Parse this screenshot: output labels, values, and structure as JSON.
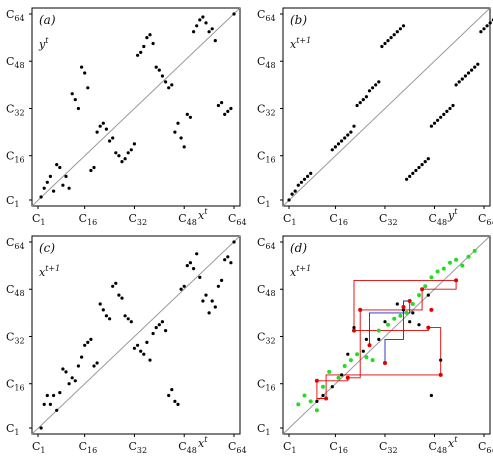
{
  "panels": [
    {
      "label": "(a)",
      "y_axis_label": "y^t",
      "x_axis_label": "x^t",
      "x_ticks": [
        "C_1",
        "C_16",
        "C_32",
        "C_48",
        "C_64"
      ],
      "y_ticks": [
        "C_1",
        "C_16",
        "C_32",
        "C_48",
        "C_64"
      ],
      "points_black": [
        [
          2,
          2
        ],
        [
          3,
          5
        ],
        [
          4,
          7
        ],
        [
          5,
          9
        ],
        [
          6,
          4
        ],
        [
          7,
          13
        ],
        [
          8,
          12
        ],
        [
          9,
          6
        ],
        [
          10,
          9
        ],
        [
          11,
          5
        ],
        [
          12,
          37
        ],
        [
          13,
          35
        ],
        [
          14,
          32
        ],
        [
          15,
          46
        ],
        [
          16,
          44
        ],
        [
          17,
          39
        ],
        [
          18,
          11
        ],
        [
          19,
          12
        ],
        [
          20,
          24
        ],
        [
          21,
          26
        ],
        [
          22,
          27
        ],
        [
          23,
          25
        ],
        [
          24,
          21
        ],
        [
          25,
          22
        ],
        [
          26,
          17
        ],
        [
          27,
          16
        ],
        [
          28,
          14
        ],
        [
          29,
          15
        ],
        [
          30,
          17
        ],
        [
          31,
          18
        ],
        [
          32,
          20
        ],
        [
          33,
          50
        ],
        [
          34,
          51
        ],
        [
          35,
          53
        ],
        [
          36,
          56
        ],
        [
          37,
          57
        ],
        [
          38,
          54
        ],
        [
          39,
          46
        ],
        [
          40,
          45
        ],
        [
          41,
          43
        ],
        [
          42,
          41
        ],
        [
          43,
          39
        ],
        [
          44,
          40
        ],
        [
          45,
          24
        ],
        [
          46,
          27
        ],
        [
          47,
          22
        ],
        [
          48,
          19
        ],
        [
          49,
          30
        ],
        [
          50,
          29
        ],
        [
          51,
          58
        ],
        [
          52,
          60
        ],
        [
          53,
          62
        ],
        [
          54,
          63
        ],
        [
          55,
          61
        ],
        [
          56,
          58
        ],
        [
          57,
          59
        ],
        [
          58,
          55
        ],
        [
          59,
          33
        ],
        [
          60,
          34
        ],
        [
          61,
          30
        ],
        [
          62,
          31
        ],
        [
          63,
          32
        ],
        [
          64,
          64
        ]
      ]
    },
    {
      "label": "(b)",
      "y_axis_label": "x^{t+1}",
      "x_axis_label": "y^t",
      "x_ticks": [
        "C_1",
        "C_16",
        "C_32",
        "C_48",
        "C_64"
      ],
      "y_ticks": [
        "C_1",
        "C_16",
        "C_32",
        "C_48",
        "C_64"
      ],
      "points_black": [
        [
          1,
          1
        ],
        [
          2,
          3
        ],
        [
          3,
          4
        ],
        [
          4,
          6
        ],
        [
          5,
          7
        ],
        [
          6,
          8
        ],
        [
          7,
          9
        ],
        [
          8,
          10
        ],
        [
          15,
          18
        ],
        [
          16,
          19
        ],
        [
          17,
          20
        ],
        [
          18,
          21
        ],
        [
          19,
          22
        ],
        [
          20,
          23
        ],
        [
          21,
          24
        ],
        [
          22,
          26
        ],
        [
          23,
          33
        ],
        [
          24,
          34
        ],
        [
          25,
          35
        ],
        [
          26,
          36
        ],
        [
          27,
          38
        ],
        [
          28,
          39
        ],
        [
          29,
          40
        ],
        [
          30,
          41
        ],
        [
          31,
          53
        ],
        [
          32,
          54
        ],
        [
          33,
          55
        ],
        [
          34,
          56
        ],
        [
          35,
          57
        ],
        [
          36,
          58
        ],
        [
          37,
          59
        ],
        [
          38,
          60
        ],
        [
          39,
          8
        ],
        [
          40,
          9
        ],
        [
          41,
          10
        ],
        [
          42,
          11
        ],
        [
          43,
          12
        ],
        [
          44,
          13
        ],
        [
          45,
          14
        ],
        [
          46,
          15
        ],
        [
          47,
          26
        ],
        [
          48,
          27
        ],
        [
          49,
          28
        ],
        [
          50,
          29
        ],
        [
          51,
          30
        ],
        [
          52,
          31
        ],
        [
          53,
          32
        ],
        [
          54,
          33
        ],
        [
          55,
          40
        ],
        [
          56,
          41
        ],
        [
          57,
          42
        ],
        [
          58,
          43
        ],
        [
          59,
          44
        ],
        [
          60,
          45
        ],
        [
          61,
          46
        ],
        [
          62,
          47
        ],
        [
          63,
          58
        ],
        [
          64,
          59
        ],
        [
          65,
          60
        ],
        [
          66,
          61
        ],
        [
          67,
          62
        ],
        [
          68,
          63
        ]
      ]
    },
    {
      "label": "(c)",
      "y_axis_label": "x^{t+1}",
      "x_axis_label": "x^t",
      "x_ticks": [
        "C_1",
        "C_16",
        "C_32",
        "C_48",
        "C_64"
      ],
      "y_ticks": [
        "C_1",
        "C_16",
        "C_32",
        "C_48",
        "C_64"
      ],
      "points_black": [
        [
          2,
          1
        ],
        [
          3,
          9
        ],
        [
          4,
          12
        ],
        [
          5,
          9
        ],
        [
          6,
          12
        ],
        [
          7,
          7
        ],
        [
          8,
          13
        ],
        [
          9,
          21
        ],
        [
          10,
          20
        ],
        [
          11,
          16
        ],
        [
          12,
          18
        ],
        [
          13,
          17
        ],
        [
          14,
          22
        ],
        [
          15,
          25
        ],
        [
          16,
          29
        ],
        [
          17,
          30
        ],
        [
          18,
          31
        ],
        [
          19,
          22
        ],
        [
          20,
          23
        ],
        [
          21,
          43
        ],
        [
          22,
          41
        ],
        [
          23,
          39
        ],
        [
          24,
          38
        ],
        [
          25,
          49
        ],
        [
          26,
          50
        ],
        [
          27,
          46
        ],
        [
          28,
          45
        ],
        [
          29,
          39
        ],
        [
          30,
          38
        ],
        [
          31,
          37
        ],
        [
          32,
          28
        ],
        [
          33,
          29
        ],
        [
          34,
          27
        ],
        [
          35,
          26
        ],
        [
          36,
          30
        ],
        [
          37,
          24
        ],
        [
          38,
          33
        ],
        [
          39,
          35
        ],
        [
          40,
          36
        ],
        [
          41,
          37
        ],
        [
          42,
          34
        ],
        [
          43,
          12
        ],
        [
          44,
          14
        ],
        [
          45,
          10
        ],
        [
          46,
          9
        ],
        [
          47,
          48
        ],
        [
          48,
          49
        ],
        [
          49,
          56
        ],
        [
          50,
          57
        ],
        [
          51,
          55
        ],
        [
          52,
          60
        ],
        [
          53,
          52
        ],
        [
          54,
          44
        ],
        [
          55,
          46
        ],
        [
          56,
          40
        ],
        [
          57,
          44
        ],
        [
          58,
          42
        ],
        [
          59,
          49
        ],
        [
          60,
          51
        ],
        [
          61,
          58
        ],
        [
          62,
          59
        ],
        [
          63,
          57
        ],
        [
          64,
          64
        ]
      ]
    },
    {
      "label": "(d)",
      "y_axis_label": "x^{t+1}",
      "x_axis_label": "x^t",
      "x_ticks": [
        "C_1",
        "C_16",
        "C_32",
        "C_48",
        "C_64"
      ],
      "y_ticks": [
        "C_1",
        "C_16",
        "C_32",
        "C_48",
        "C_64"
      ],
      "points_black": [
        [
          10,
          10
        ],
        [
          12,
          12
        ],
        [
          15,
          15
        ],
        [
          18,
          19
        ],
        [
          20,
          26
        ],
        [
          22,
          35
        ],
        [
          25,
          27
        ],
        [
          26,
          31
        ],
        [
          30,
          31
        ],
        [
          32,
          37
        ],
        [
          36,
          43
        ],
        [
          38,
          41
        ],
        [
          40,
          37
        ],
        [
          41,
          40
        ],
        [
          43,
          36
        ],
        [
          46,
          46
        ],
        [
          47,
          12
        ],
        [
          50,
          24
        ]
      ],
      "points_red": [
        [
          10,
          17
        ],
        [
          13,
          11
        ],
        [
          20,
          18
        ],
        [
          22,
          34
        ],
        [
          24,
          41
        ],
        [
          27,
          29
        ],
        [
          32,
          23
        ],
        [
          38,
          42
        ],
        [
          40,
          44
        ],
        [
          44,
          48
        ],
        [
          46,
          35
        ],
        [
          47,
          41
        ],
        [
          50,
          19
        ],
        [
          55,
          51
        ]
      ],
      "points_green": [
        [
          4,
          9
        ],
        [
          6,
          12
        ],
        [
          8,
          10
        ],
        [
          10,
          7
        ],
        [
          12,
          15
        ],
        [
          14,
          20
        ],
        [
          17,
          18
        ],
        [
          19,
          22
        ],
        [
          21,
          24
        ],
        [
          23,
          26
        ],
        [
          26,
          25
        ],
        [
          28,
          24
        ],
        [
          30,
          34
        ],
        [
          33,
          36
        ],
        [
          35,
          38
        ],
        [
          37,
          39
        ],
        [
          39,
          40
        ],
        [
          41,
          43
        ],
        [
          43,
          46
        ],
        [
          45,
          49
        ],
        [
          47,
          52
        ],
        [
          49,
          54
        ],
        [
          51,
          55
        ],
        [
          53,
          57
        ],
        [
          55,
          58
        ],
        [
          57,
          56
        ],
        [
          59,
          59
        ],
        [
          61,
          61
        ]
      ]
    }
  ],
  "colors": {
    "black_points": "#000000",
    "red": "#e00000",
    "green": "#22dd22",
    "blue": "#2222cc",
    "diagonal": "#9a9a9a"
  }
}
